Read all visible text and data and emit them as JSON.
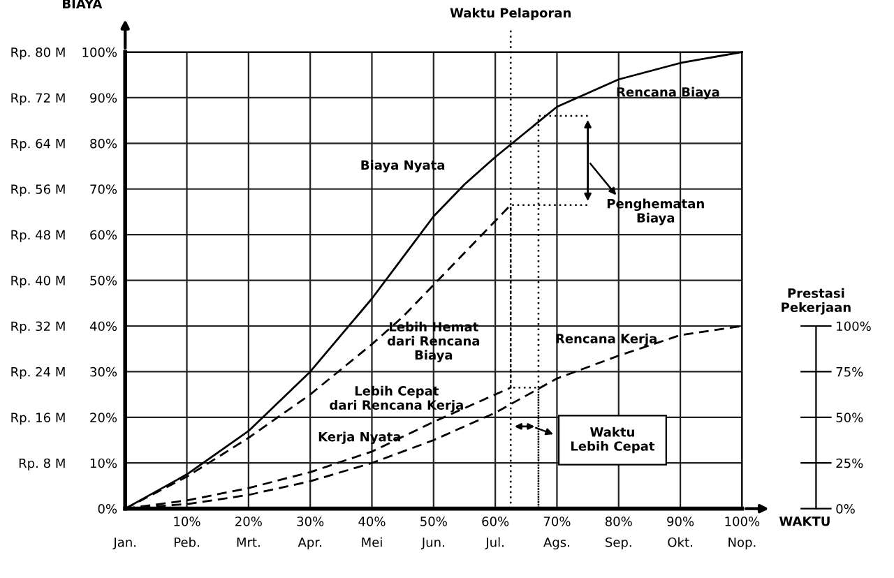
{
  "chart_data": {
    "type": "line",
    "xlabel": "WAKTU",
    "ylabel": "BIAYA",
    "y3label": "Prestasi Pekerjaan",
    "x": [
      0,
      10,
      20,
      30,
      40,
      45,
      50,
      55,
      60,
      70,
      80,
      90,
      100
    ],
    "series": [
      {
        "color": "#000000",
        "line_style": "solid",
        "values": [
          0,
          7.5,
          17,
          30,
          46,
          55,
          64,
          71,
          77,
          88,
          94,
          97.6,
          100
        ]
      },
      {
        "color": "#000000",
        "line_style": "dashed",
        "x": [
          0,
          10,
          20,
          30,
          40,
          45,
          50,
          55,
          62.5
        ],
        "values": [
          0,
          7,
          15.5,
          25,
          36,
          42,
          49,
          56,
          66.5
        ]
      },
      {
        "color": "#000000",
        "line_style": "dashed",
        "values": [
          0,
          1,
          3,
          6,
          10,
          12.5,
          15,
          18,
          21,
          28.5,
          33.5,
          38,
          40
        ]
      },
      {
        "color": "#000000",
        "line_style": "dashed",
        "x": [
          0,
          10,
          20,
          30,
          40,
          50,
          62.5
        ],
        "values": [
          0,
          1.8,
          4.5,
          8,
          12.5,
          19,
          26.5
        ]
      },
      {
        "color": "#000000",
        "line_style": "dotted",
        "x": [
          75,
          67,
          67,
          67,
          62.5,
          62.5,
          75
        ],
        "values": [
          86,
          86,
          0,
          26.5,
          26.5,
          66.5,
          66.5
        ]
      }
    ],
    "xlim": [
      0,
      100
    ],
    "ylim": [
      0,
      100
    ],
    "xticks": [
      {
        "value": 0,
        "label": "Jan."
      },
      {
        "value": 10,
        "label": "10%\nPeb."
      },
      {
        "value": 20,
        "label": "20%\nMrt."
      },
      {
        "value": 30,
        "label": "30%\nApr."
      },
      {
        "value": 40,
        "label": "40%\nMei"
      },
      {
        "value": 50,
        "label": "50%\nJun."
      },
      {
        "value": 60,
        "label": "60%\nJul."
      },
      {
        "value": 70,
        "label": "70%\nAgs."
      },
      {
        "value": 80,
        "label": "80%\nSep."
      },
      {
        "value": 90,
        "label": "90%\nOkt."
      },
      {
        "value": 100,
        "label": "100%\nNop."
      }
    ],
    "yticks": [
      {
        "value": 0,
        "label": "0%"
      },
      {
        "value": 10,
        "label": "10%"
      },
      {
        "value": 20,
        "label": "20%"
      },
      {
        "value": 30,
        "label": "30%"
      },
      {
        "value": 40,
        "label": "40%"
      },
      {
        "value": 50,
        "label": "50%"
      },
      {
        "value": 60,
        "label": "60%"
      },
      {
        "value": 70,
        "label": "70%"
      },
      {
        "value": 80,
        "label": "80%"
      },
      {
        "value": 90,
        "label": "90%"
      },
      {
        "value": 100,
        "label": "100%"
      }
    ],
    "y2lim": [
      0,
      80
    ],
    "y2ticks": [
      {
        "value": 8,
        "label": "Rp. 8 M"
      },
      {
        "value": 16,
        "label": "Rp. 16 M"
      },
      {
        "value": 24,
        "label": "Rp. 24 M"
      },
      {
        "value": 32,
        "label": "Rp. 32 M"
      },
      {
        "value": 40,
        "label": "Rp. 40 M"
      },
      {
        "value": 48,
        "label": "Rp. 48 M"
      },
      {
        "value": 56,
        "label": "Rp. 56 M"
      },
      {
        "value": 64,
        "label": "Rp. 64 M"
      },
      {
        "value": 72,
        "label": "Rp. 72 M"
      },
      {
        "value": 80,
        "label": "Rp. 80 M"
      }
    ],
    "y3lim": [
      0,
      250
    ],
    "y3ticks": [
      {
        "value": 0,
        "label": "0%"
      },
      {
        "value": 25,
        "label": "25%"
      },
      {
        "value": 50,
        "label": "50%"
      },
      {
        "value": 75,
        "label": "75%"
      },
      {
        "value": 100,
        "label": "100%"
      }
    ],
    "ref_lines": [
      {
        "axis": "x",
        "value": 62.5,
        "label": "Waktu Pelaporan",
        "line_style": "dotted",
        "color": "#000000"
      }
    ],
    "annotations": [
      "Rencana Biaya",
      "Biaya Nyata",
      "Penghematan\nBiaya",
      "Lebih Hemat\ndari Rencana\nBiaya",
      "Lebih Cepat\ndari Rencana Kerja",
      "Kerja Nyata",
      "Rencana Kerja",
      "Waktu\nLebih Cepat"
    ],
    "grid": true
  }
}
